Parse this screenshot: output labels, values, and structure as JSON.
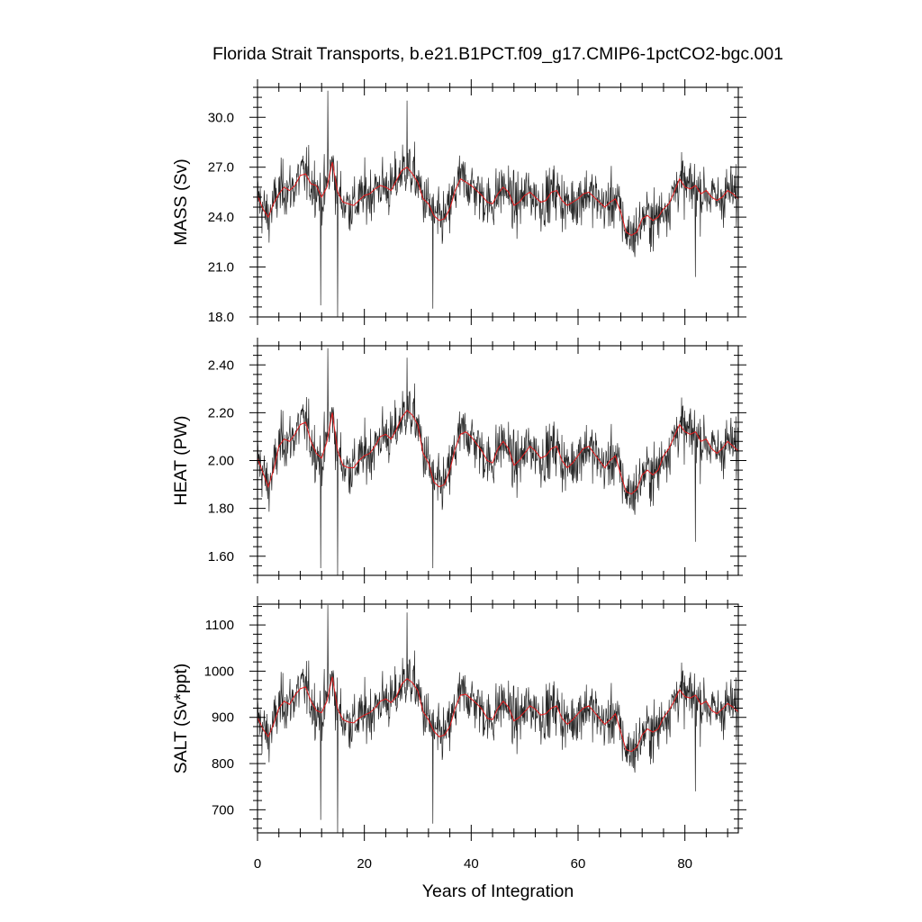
{
  "chart_data": {
    "title": "Florida Strait Transports, b.e21.B1PCT.f09_g17.CMIP6-1pctCO2-bgc.001",
    "xlabel": "Years of Integration",
    "xlim": [
      0,
      90
    ],
    "xticks": [
      "0",
      "20",
      "40",
      "60",
      "80"
    ],
    "colors": {
      "raw": "#000000",
      "smoothed": "#e41a1c"
    },
    "panels": [
      {
        "type": "line",
        "ylabel": "MASS (Sv)",
        "ylim": [
          18.0,
          31.8
        ],
        "yticks": [
          "18.0",
          "21.0",
          "24.0",
          "27.0",
          "30.0"
        ],
        "monthly_x_step": 0.0833,
        "monthly_mean_approx": 25.4,
        "monthly_extremes": [
          {
            "x": 13.2,
            "y": 31.6
          },
          {
            "x": 15.0,
            "y": 18.0
          },
          {
            "x": 28.0,
            "y": 31.0
          },
          {
            "x": 32.8,
            "y": 18.5
          },
          {
            "x": 11.8,
            "y": 18.7
          },
          {
            "x": 82.0,
            "y": 20.4
          }
        ],
        "smoothed_x": [
          0,
          1,
          2,
          3,
          4,
          5,
          6,
          7,
          8,
          9,
          10,
          11,
          12,
          13,
          14,
          15,
          16,
          17,
          18,
          19,
          20,
          21,
          22,
          23,
          24,
          25,
          26,
          27,
          28,
          29,
          30,
          31,
          32,
          33,
          34,
          35,
          36,
          37,
          38,
          39,
          40,
          41,
          42,
          43,
          44,
          45,
          46,
          47,
          48,
          49,
          50,
          51,
          52,
          53,
          54,
          55,
          56,
          57,
          58,
          59,
          60,
          61,
          62,
          63,
          64,
          65,
          66,
          67,
          68,
          69,
          70,
          71,
          72,
          73,
          74,
          75,
          76,
          77,
          78,
          79,
          80,
          81,
          82,
          83,
          84,
          85,
          86,
          87,
          88,
          89,
          90
        ],
        "smoothed_y": [
          25.3,
          24.5,
          24.0,
          24.8,
          25.4,
          25.8,
          25.6,
          25.9,
          26.5,
          26.6,
          26.0,
          25.9,
          25.2,
          25.8,
          27.3,
          25.5,
          24.9,
          24.8,
          24.7,
          25.0,
          25.3,
          25.4,
          25.7,
          25.9,
          25.8,
          25.6,
          26.2,
          26.8,
          27.0,
          26.6,
          26.1,
          25.1,
          24.8,
          24.1,
          23.8,
          23.9,
          24.5,
          25.6,
          26.3,
          26.1,
          25.9,
          25.6,
          25.3,
          24.9,
          24.8,
          25.4,
          25.8,
          25.5,
          24.7,
          24.9,
          25.3,
          25.5,
          25.2,
          24.9,
          25.0,
          25.5,
          25.6,
          25.0,
          24.7,
          24.9,
          25.1,
          25.4,
          25.5,
          25.2,
          24.9,
          24.6,
          24.9,
          25.1,
          24.3,
          23.1,
          22.9,
          23.1,
          23.9,
          24.1,
          23.8,
          24.0,
          24.5,
          24.8,
          25.5,
          26.3,
          25.8,
          25.7,
          25.9,
          25.4,
          25.6,
          25.2,
          25.0,
          25.2,
          25.6,
          25.4,
          25.1
        ]
      },
      {
        "type": "line",
        "ylabel": "HEAT (PW)",
        "ylim": [
          1.52,
          2.48
        ],
        "yticks": [
          "1.60",
          "1.80",
          "2.00",
          "2.20",
          "2.40"
        ],
        "monthly_x_step": 0.0833,
        "monthly_mean_approx": 2.04,
        "monthly_extremes": [
          {
            "x": 13.2,
            "y": 2.47
          },
          {
            "x": 15.0,
            "y": 1.52
          },
          {
            "x": 28.0,
            "y": 2.43
          },
          {
            "x": 32.8,
            "y": 1.55
          },
          {
            "x": 11.8,
            "y": 1.55
          },
          {
            "x": 82.0,
            "y": 1.66
          }
        ],
        "smoothed_x": [
          0,
          1,
          2,
          3,
          4,
          5,
          6,
          7,
          8,
          9,
          10,
          11,
          12,
          13,
          14,
          15,
          16,
          17,
          18,
          19,
          20,
          21,
          22,
          23,
          24,
          25,
          26,
          27,
          28,
          29,
          30,
          31,
          32,
          33,
          34,
          35,
          36,
          37,
          38,
          39,
          40,
          41,
          42,
          43,
          44,
          45,
          46,
          47,
          48,
          49,
          50,
          51,
          52,
          53,
          54,
          55,
          56,
          57,
          58,
          59,
          60,
          61,
          62,
          63,
          64,
          65,
          66,
          67,
          68,
          69,
          70,
          71,
          72,
          73,
          74,
          75,
          76,
          77,
          78,
          79,
          80,
          81,
          82,
          83,
          84,
          85,
          86,
          87,
          88,
          89,
          90
        ],
        "smoothed_y": [
          2.01,
          1.95,
          1.89,
          1.96,
          2.06,
          2.09,
          2.08,
          2.11,
          2.15,
          2.16,
          2.08,
          2.03,
          2.01,
          2.08,
          2.2,
          2.04,
          1.98,
          1.97,
          1.97,
          2.0,
          2.02,
          2.03,
          2.06,
          2.1,
          2.11,
          2.09,
          2.13,
          2.18,
          2.21,
          2.19,
          2.15,
          2.03,
          1.99,
          1.91,
          1.89,
          1.9,
          1.96,
          2.05,
          2.11,
          2.12,
          2.1,
          2.07,
          2.04,
          2.0,
          1.99,
          2.05,
          2.08,
          2.05,
          1.98,
          2.0,
          2.03,
          2.06,
          2.04,
          2.01,
          2.02,
          2.05,
          2.06,
          2.0,
          1.97,
          1.99,
          2.02,
          2.05,
          2.06,
          2.03,
          2.0,
          1.97,
          2.0,
          2.02,
          1.94,
          1.87,
          1.86,
          1.88,
          1.94,
          1.96,
          1.94,
          1.96,
          2.02,
          2.05,
          2.1,
          2.15,
          2.12,
          2.11,
          2.12,
          2.08,
          2.09,
          2.05,
          2.03,
          2.05,
          2.08,
          2.06,
          2.04
        ]
      },
      {
        "type": "line",
        "ylabel": "SALT (Sv*ppt)",
        "ylim": [
          650,
          1145
        ],
        "yticks": [
          "700",
          "800",
          "900",
          "1000",
          "1100"
        ],
        "monthly_x_step": 0.0833,
        "monthly_mean_approx": 905,
        "monthly_extremes": [
          {
            "x": 13.2,
            "y": 1143
          },
          {
            "x": 15.0,
            "y": 650
          },
          {
            "x": 28.0,
            "y": 1127
          },
          {
            "x": 32.8,
            "y": 670
          },
          {
            "x": 11.8,
            "y": 678
          },
          {
            "x": 82.0,
            "y": 740
          }
        ],
        "smoothed_x": [
          0,
          1,
          2,
          3,
          4,
          5,
          6,
          7,
          8,
          9,
          10,
          11,
          12,
          13,
          14,
          15,
          16,
          17,
          18,
          19,
          20,
          21,
          22,
          23,
          24,
          25,
          26,
          27,
          28,
          29,
          30,
          31,
          32,
          33,
          34,
          35,
          36,
          37,
          38,
          39,
          40,
          41,
          42,
          43,
          44,
          45,
          46,
          47,
          48,
          49,
          50,
          51,
          52,
          53,
          54,
          55,
          56,
          57,
          58,
          59,
          60,
          61,
          62,
          63,
          64,
          65,
          66,
          67,
          68,
          69,
          70,
          71,
          72,
          73,
          74,
          75,
          76,
          77,
          78,
          79,
          80,
          81,
          82,
          83,
          84,
          85,
          86,
          87,
          88,
          89,
          90
        ],
        "smoothed_y": [
          900,
          875,
          858,
          885,
          920,
          935,
          928,
          948,
          962,
          966,
          935,
          915,
          910,
          935,
          988,
          918,
          895,
          890,
          888,
          898,
          905,
          910,
          920,
          935,
          940,
          932,
          945,
          972,
          984,
          975,
          958,
          912,
          895,
          870,
          858,
          862,
          880,
          920,
          948,
          950,
          940,
          930,
          918,
          898,
          895,
          920,
          935,
          922,
          892,
          900,
          912,
          925,
          918,
          905,
          908,
          920,
          925,
          898,
          885,
          895,
          908,
          920,
          925,
          912,
          898,
          885,
          895,
          908,
          868,
          830,
          826,
          835,
          862,
          875,
          868,
          875,
          900,
          915,
          935,
          960,
          945,
          942,
          948,
          928,
          935,
          915,
          908,
          918,
          930,
          922,
          912
        ]
      }
    ]
  }
}
